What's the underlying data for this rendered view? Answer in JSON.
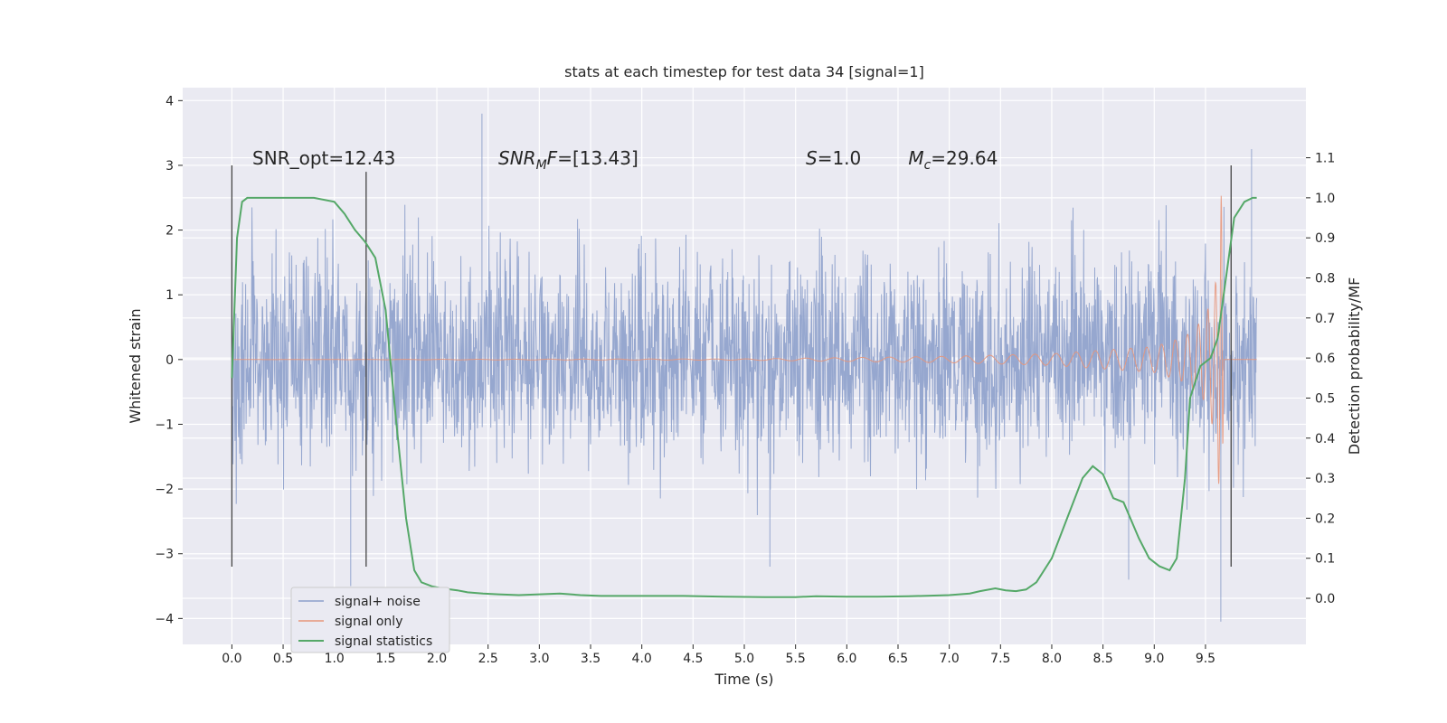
{
  "chart_data": {
    "type": "line",
    "title": "stats at each timestep for test data 34 [signal=1]",
    "xlabel": "Time (s)",
    "ylabel": "Whitened strain",
    "y2label": "Detection probability/MF",
    "xlim": [
      -0.48,
      10.48
    ],
    "ylim": [
      -4.4,
      4.2
    ],
    "y2lim": [
      -0.115,
      1.275
    ],
    "x_ticks": [
      "0.0",
      "0.5",
      "1.0",
      "1.5",
      "2.0",
      "2.5",
      "3.0",
      "3.5",
      "4.0",
      "4.5",
      "5.0",
      "5.5",
      "6.0",
      "6.5",
      "7.0",
      "7.5",
      "8.0",
      "8.5",
      "9.0",
      "9.5"
    ],
    "y_ticks": [
      "−4",
      "−3",
      "−2",
      "−1",
      "0",
      "1",
      "2",
      "3",
      "4"
    ],
    "y2_ticks": [
      "0.0",
      "0.1",
      "0.2",
      "0.3",
      "0.4",
      "0.5",
      "0.6",
      "0.7",
      "0.8",
      "0.9",
      "1.0",
      "1.1"
    ],
    "grid": true,
    "legend_position": "lower-left",
    "annotations": [
      {
        "text": "SNR_opt=12.43",
        "x": 0.2,
        "y": 3.1
      },
      {
        "text": "SNR_MF=[13.43]",
        "x": 2.6,
        "y": 3.1
      },
      {
        "text": "S=1.0",
        "x": 5.6,
        "y": 3.1
      },
      {
        "text": "M_c=29.64",
        "x": 6.6,
        "y": 3.1
      }
    ],
    "vertical_markers": [
      {
        "x": 0.0,
        "y": [
          -3.2,
          3.0
        ]
      },
      {
        "x": 1.31,
        "y": [
          -3.2,
          2.9
        ]
      },
      {
        "x": 9.75,
        "y": [
          -3.2,
          3.0
        ]
      }
    ],
    "series": [
      {
        "name": "signal+ noise",
        "color": "#8da0cb",
        "x_range": [
          0.0,
          10.0
        ],
        "typical_amplitude": 1.3,
        "peak_samples": [
          {
            "x": 0.0,
            "y": 1.5
          },
          {
            "x": 1.16,
            "y": -3.5
          },
          {
            "x": 2.44,
            "y": 3.8
          },
          {
            "x": 5.25,
            "y": -3.2
          },
          {
            "x": 8.75,
            "y": -3.4
          },
          {
            "x": 9.65,
            "y": -4.05
          },
          {
            "x": 9.95,
            "y": 3.25
          }
        ]
      },
      {
        "name": "signal only",
        "color": "#e8967a",
        "x_range": [
          0.0,
          9.68
        ],
        "envelope": [
          {
            "x": 0.0,
            "y": 0.0
          },
          {
            "x": 5.0,
            "y": 0.01
          },
          {
            "x": 7.0,
            "y": 0.05
          },
          {
            "x": 8.0,
            "y": 0.09
          },
          {
            "x": 9.0,
            "y": 0.2
          },
          {
            "x": 9.3,
            "y": 0.35
          },
          {
            "x": 9.5,
            "y": 0.65
          },
          {
            "x": 9.6,
            "y": 1.2
          },
          {
            "x": 9.66,
            "y": 2.7
          },
          {
            "x": 9.68,
            "y": 0.0
          }
        ]
      },
      {
        "name": "signal statistics",
        "color": "#55a868",
        "axis": "right",
        "x": [
          0.0,
          0.05,
          0.1,
          0.15,
          0.25,
          0.4,
          0.6,
          0.8,
          1.0,
          1.1,
          1.2,
          1.3,
          1.4,
          1.5,
          1.6,
          1.7,
          1.78,
          1.85,
          1.95,
          2.05,
          2.2,
          2.3,
          2.45,
          2.6,
          2.8,
          3.0,
          3.2,
          3.4,
          3.6,
          4.0,
          4.4,
          4.8,
          5.2,
          5.5,
          5.7,
          6.0,
          6.3,
          6.6,
          7.0,
          7.2,
          7.3,
          7.45,
          7.55,
          7.65,
          7.75,
          7.85,
          8.0,
          8.15,
          8.3,
          8.4,
          8.5,
          8.6,
          8.7,
          8.85,
          8.95,
          9.05,
          9.15,
          9.22,
          9.3,
          9.35,
          9.45,
          9.55,
          9.62,
          9.7,
          9.78,
          9.88,
          9.96,
          10.0
        ],
        "y": [
          0.55,
          0.9,
          0.99,
          1.0,
          1.0,
          1.0,
          1.0,
          1.0,
          0.99,
          0.96,
          0.92,
          0.89,
          0.85,
          0.72,
          0.45,
          0.2,
          0.07,
          0.04,
          0.03,
          0.025,
          0.02,
          0.015,
          0.012,
          0.01,
          0.008,
          0.01,
          0.012,
          0.008,
          0.006,
          0.006,
          0.006,
          0.004,
          0.003,
          0.003,
          0.005,
          0.004,
          0.004,
          0.005,
          0.008,
          0.012,
          0.018,
          0.025,
          0.02,
          0.018,
          0.022,
          0.04,
          0.1,
          0.2,
          0.3,
          0.33,
          0.31,
          0.25,
          0.24,
          0.15,
          0.1,
          0.08,
          0.07,
          0.1,
          0.3,
          0.5,
          0.58,
          0.6,
          0.65,
          0.8,
          0.95,
          0.99,
          1.0,
          1.0
        ]
      }
    ]
  }
}
